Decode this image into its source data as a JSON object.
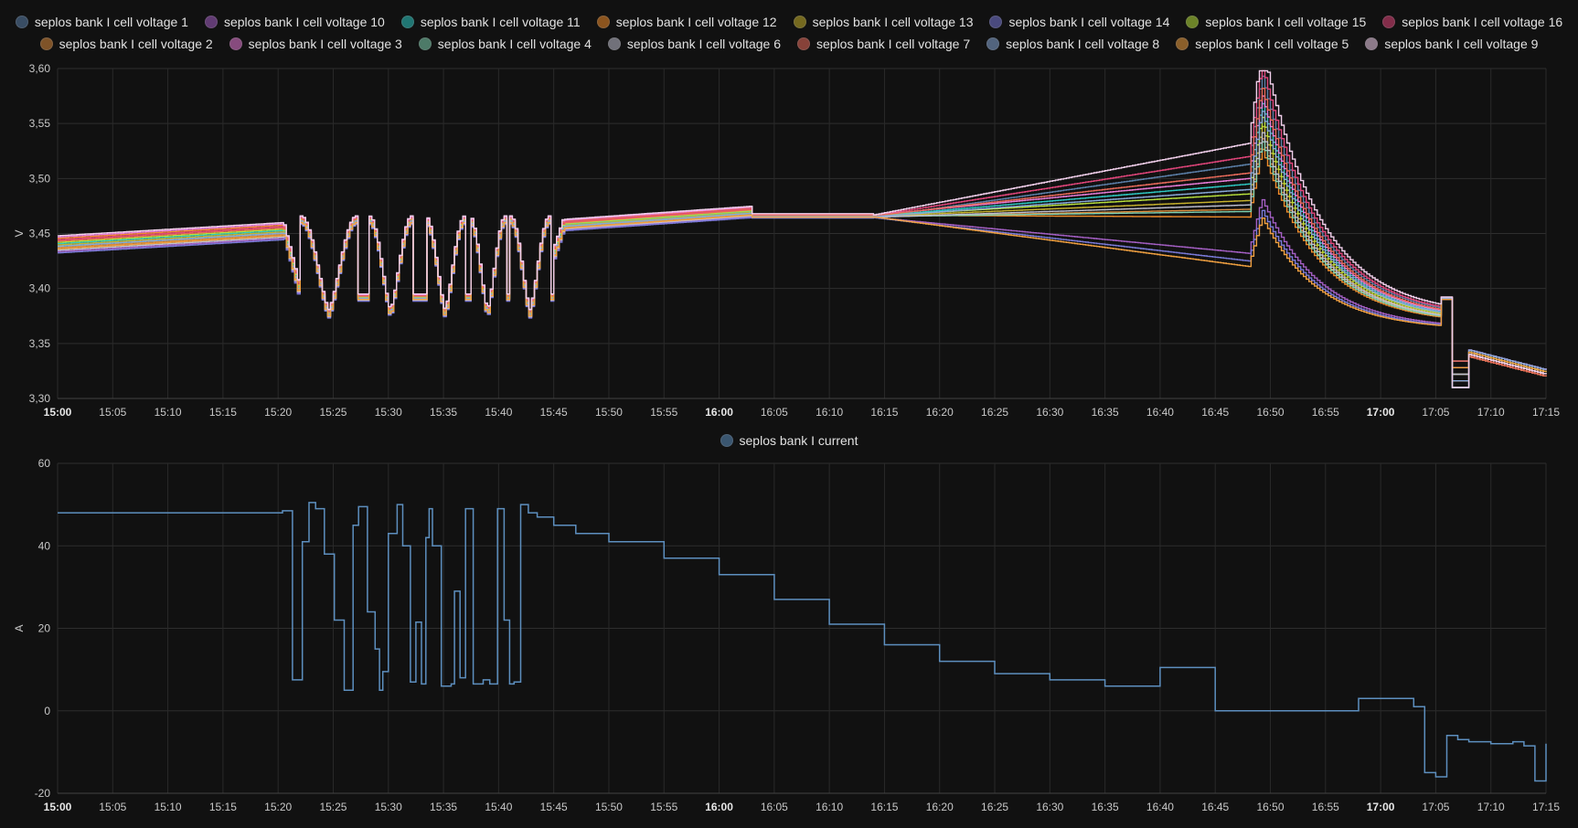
{
  "chart_data": [
    {
      "type": "line",
      "ylabel": "V",
      "ylim": [
        3.3,
        3.6
      ],
      "yticks": [
        "3,30",
        "3,35",
        "3,40",
        "3,45",
        "3,50",
        "3,55",
        "3,60"
      ],
      "xticks": [
        "15:00",
        "15:05",
        "15:10",
        "15:15",
        "15:20",
        "15:25",
        "15:30",
        "15:35",
        "15:40",
        "15:45",
        "15:50",
        "15:55",
        "16:00",
        "16:05",
        "16:10",
        "16:15",
        "16:20",
        "16:25",
        "16:30",
        "16:35",
        "16:40",
        "16:45",
        "16:50",
        "16:55",
        "17:00",
        "17:05",
        "17:10",
        "17:15"
      ],
      "bold_xticks": [
        "15:00",
        "16:00",
        "17:00"
      ],
      "grid": true,
      "legend_position": "top",
      "series": [
        {
          "name": "seplos bank I cell voltage 1",
          "color": "#5b7fa8",
          "offset": 0.0,
          "cv": 3.513
        },
        {
          "name": "seplos bank I cell voltage 10",
          "color": "#a45fc4",
          "offset": -0.002,
          "cv": 3.432
        },
        {
          "name": "seplos bank I cell voltage 11",
          "color": "#2ec9c3",
          "offset": 0.004,
          "cv": 3.495
        },
        {
          "name": "seplos bank I cell voltage 12",
          "color": "#f08c2a",
          "offset": 0.008,
          "cv": 3.465
        },
        {
          "name": "seplos bank I cell voltage 13",
          "color": "#c7b22c",
          "offset": 0.003,
          "cv": 3.48
        },
        {
          "name": "seplos bank I cell voltage 14",
          "color": "#7a7ad8",
          "offset": -0.003,
          "cv": 3.425
        },
        {
          "name": "seplos bank I cell voltage 15",
          "color": "#b8e03c",
          "offset": 0.005,
          "cv": 3.486
        },
        {
          "name": "seplos bank I cell voltage 16",
          "color": "#e0457a",
          "offset": 0.007,
          "cv": 3.52
        },
        {
          "name": "seplos bank I cell voltage 2",
          "color": "#d98a3c",
          "offset": 0.001,
          "cv": 3.472
        },
        {
          "name": "seplos bank I cell voltage 3",
          "color": "#e87cd8",
          "offset": 0.009,
          "cv": 3.5
        },
        {
          "name": "seplos bank I cell voltage 4",
          "color": "#7fd1b0",
          "offset": 0.002,
          "cv": 3.47
        },
        {
          "name": "seplos bank I cell voltage 6",
          "color": "#c0c0d0",
          "offset": -0.001,
          "cv": 3.476
        },
        {
          "name": "seplos bank I cell voltage 7",
          "color": "#e86a5a",
          "offset": 0.006,
          "cv": 3.505
        },
        {
          "name": "seplos bank I cell voltage 8",
          "color": "#88a8d8",
          "offset": 0.002,
          "cv": 3.49
        },
        {
          "name": "seplos bank I cell voltage 5",
          "color": "#f0a040",
          "offset": 0.0,
          "cv": 3.42
        },
        {
          "name": "seplos bank I cell voltage 9",
          "color": "#f2d0ec",
          "offset": 0.01,
          "cv": 3.532
        }
      ]
    },
    {
      "type": "line",
      "ylabel": "A",
      "ylim": [
        -20,
        60
      ],
      "yticks": [
        "-20",
        "0",
        "20",
        "40",
        "60"
      ],
      "xticks": [
        "15:00",
        "15:05",
        "15:10",
        "15:15",
        "15:20",
        "15:25",
        "15:30",
        "15:35",
        "15:40",
        "15:45",
        "15:50",
        "15:55",
        "16:00",
        "16:05",
        "16:10",
        "16:15",
        "16:20",
        "16:25",
        "16:30",
        "16:35",
        "16:40",
        "16:45",
        "16:50",
        "16:55",
        "17:00",
        "17:05",
        "17:10",
        "17:15"
      ],
      "bold_xticks": [
        "15:00",
        "16:00",
        "17:00"
      ],
      "grid": true,
      "legend_position": "top",
      "series": [
        {
          "name": "seplos bank I current",
          "color": "#5d8fbf",
          "x": [
            0,
            20.4,
            21.3,
            22.2,
            22.8,
            23.4,
            24.2,
            25.1,
            26,
            26.8,
            27.3,
            28.1,
            28.8,
            29.2,
            29.5,
            30,
            30.8,
            31.3,
            32,
            32.5,
            33,
            33.4,
            33.7,
            34,
            34.8,
            35.7,
            36,
            36.5,
            37,
            37.7,
            38.6,
            39.2,
            39.9,
            40.5,
            41,
            41.4,
            42,
            42.7,
            43.5,
            45,
            47,
            50,
            55,
            60,
            65,
            70,
            75,
            80,
            85,
            90,
            95,
            100,
            105,
            106,
            106.3,
            107,
            108,
            110,
            112,
            118,
            123,
            124,
            125,
            126,
            127,
            128,
            129,
            130,
            131,
            132,
            133,
            134,
            135
          ],
          "y": [
            48,
            48.5,
            7.5,
            41,
            50.5,
            49,
            38,
            22,
            5,
            45,
            49.5,
            24,
            15,
            5,
            9.5,
            43,
            50,
            40,
            7,
            21.5,
            6.5,
            42,
            49,
            40,
            6,
            6.5,
            29,
            8,
            49,
            6.5,
            7.5,
            6.5,
            49,
            22,
            6.5,
            7,
            50,
            48,
            47,
            45,
            43,
            41,
            37,
            33,
            27,
            21,
            16,
            12,
            9,
            7.5,
            6,
            10.5,
            0,
            0,
            0,
            0,
            0,
            0,
            0,
            3,
            1,
            -15,
            -16,
            -6,
            -7,
            -7.5,
            -7.5,
            -8,
            -8,
            -7.5,
            -8.5,
            -17,
            -8
          ]
        }
      ]
    }
  ]
}
